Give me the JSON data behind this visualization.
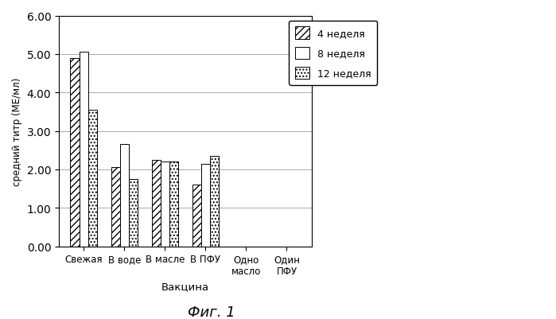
{
  "categories": [
    "Свежая",
    "В воде",
    "В масле",
    "В ПФУ",
    "Одно\nмасло",
    "Один\nПФУ"
  ],
  "series": {
    "4 неделя": [
      4.9,
      2.05,
      2.25,
      1.6,
      0.0,
      0.0
    ],
    "8 неделя": [
      5.05,
      2.65,
      2.2,
      2.15,
      0.0,
      0.0
    ],
    "12 неделя": [
      3.55,
      1.75,
      2.2,
      2.35,
      0.0,
      0.0
    ]
  },
  "ylabel": "средний титр (МЕ/мл)",
  "xlabel": "Вакцина",
  "title": "Фиг. 1",
  "ylim": [
    0.0,
    6.0
  ],
  "yticks": [
    0.0,
    1.0,
    2.0,
    3.0,
    4.0,
    5.0,
    6.0
  ],
  "hatch_4": "////",
  "hatch_8": "",
  "hatch_12": "....",
  "color_4": "#ffffff",
  "color_8": "#ffffff",
  "color_12": "#ffffff",
  "edgecolor": "#000000",
  "bar_width": 0.22,
  "legend_labels": [
    "4 неделя",
    "8 неделя",
    "12 неделя"
  ],
  "background_color": "#ffffff",
  "grid": true,
  "figsize": [
    6.99,
    4.02
  ],
  "dpi": 100
}
